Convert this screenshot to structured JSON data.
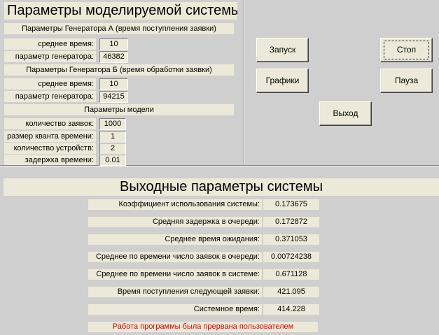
{
  "input": {
    "title": "Параметры моделируемой системы",
    "gen_a": {
      "title": "Параметры Генератора А (время поступления заявки)",
      "mean_label": "среднее время:",
      "mean": "10",
      "param_label": "параметр генератора:",
      "param": "46382"
    },
    "gen_b": {
      "title": "Параметры Генератора Б (время обработки заявки)",
      "mean_label": "среднее время:",
      "mean": "10",
      "param_label": "параметр генератора:",
      "param": "94215"
    },
    "model": {
      "title": "Параметры модели",
      "rows": [
        {
          "label": "количество заявок:",
          "value": "1000"
        },
        {
          "label": "размер кванта времени:",
          "value": "1"
        },
        {
          "label": "количество устройств:",
          "value": "2"
        },
        {
          "label": "задержка времени:",
          "value": "0.01"
        }
      ]
    }
  },
  "buttons": {
    "start": "Запуск",
    "stop": "Стоп",
    "charts": "Графики",
    "pause": "Пауза",
    "exit": "Выход"
  },
  "output": {
    "title": "Выходные параметры системы",
    "rows": [
      {
        "label": "Коэффициент использования системы:",
        "value": "0.173675"
      },
      {
        "label": "Средняя задержка в очереди:",
        "value": "0.172872"
      },
      {
        "label": "Среднее время ожидания:",
        "value": "0.371053"
      },
      {
        "label": "Среднее по времени число заявок в очереди:",
        "value": "0.00724238"
      },
      {
        "label": "Среднее по времени число заявок в системе:",
        "value": "0.671128"
      },
      {
        "label": "Время поступления следующей заявки:",
        "value": "421.095"
      },
      {
        "label": "Системное время:",
        "value": "414.228"
      }
    ],
    "status": "Работа программы была прервана пользователем",
    "status_color": "#e00000"
  }
}
